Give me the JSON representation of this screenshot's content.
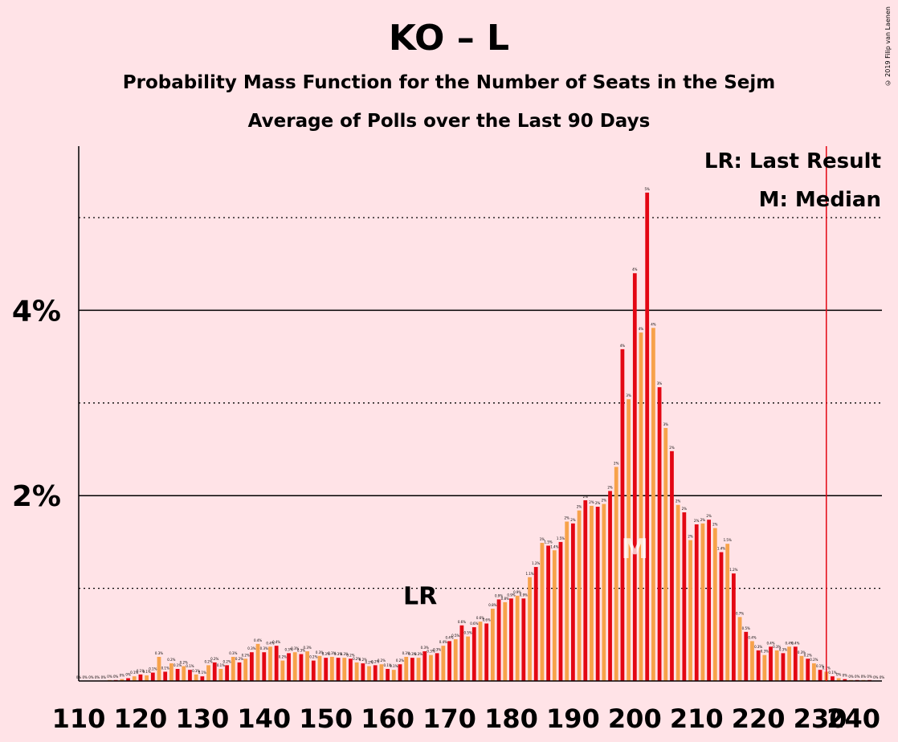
{
  "title": "KO – L",
  "subtitle": "Probability Mass Function for the Number of Seats in the Sejm",
  "subtitle2": "Average of Polls over the Last 90 Days",
  "copyright": "© 2019 Filip van Laenen",
  "legend": {
    "lr": "LR: Last Result",
    "m": "M: Median"
  },
  "markers": {
    "lr_label": "LR",
    "lr_x": 165,
    "m_label": "M",
    "m_x": 200,
    "majority_x": 231
  },
  "colors": {
    "background": "#ffe3e7",
    "red": "#e30613",
    "orange": "#f7a24a",
    "majority_line": "#e30613"
  },
  "chart_data": {
    "type": "bar",
    "xlabel": "",
    "ylabel": "",
    "x_ticks": [
      110,
      120,
      130,
      140,
      150,
      160,
      170,
      180,
      190,
      200,
      210,
      220,
      230,
      240
    ],
    "y_ticks": [
      {
        "value": 2,
        "label": "2%"
      },
      {
        "value": 4,
        "label": "4%"
      }
    ],
    "ylim": [
      0,
      5.75
    ],
    "xlim": [
      110,
      240
    ],
    "x": [
      110,
      111,
      112,
      113,
      114,
      115,
      116,
      117,
      118,
      119,
      120,
      121,
      122,
      123,
      124,
      125,
      126,
      127,
      128,
      129,
      130,
      131,
      132,
      133,
      134,
      135,
      136,
      137,
      138,
      139,
      140,
      141,
      142,
      143,
      144,
      145,
      146,
      147,
      148,
      149,
      150,
      151,
      152,
      153,
      154,
      155,
      156,
      157,
      158,
      159,
      160,
      161,
      162,
      163,
      164,
      165,
      166,
      167,
      168,
      169,
      170,
      171,
      172,
      173,
      174,
      175,
      176,
      177,
      178,
      179,
      180,
      181,
      182,
      183,
      184,
      185,
      186,
      187,
      188,
      189,
      190,
      191,
      192,
      193,
      194,
      195,
      196,
      197,
      198,
      199,
      200,
      201,
      202,
      203,
      204,
      205,
      206,
      207,
      208,
      209,
      210,
      211,
      212,
      213,
      214,
      215,
      216,
      217,
      218,
      219,
      220,
      221,
      222,
      223,
      224,
      225,
      226,
      227,
      228,
      229,
      230,
      231,
      232,
      233,
      234,
      235,
      236,
      237,
      238,
      239,
      240
    ],
    "values": [
      0,
      0,
      0,
      0,
      0,
      0.01,
      0.01,
      0.02,
      0.03,
      0.05,
      0.07,
      0.06,
      0.09,
      0.26,
      0.1,
      0.19,
      0.13,
      0.16,
      0.12,
      0.07,
      0.05,
      0.17,
      0.2,
      0.13,
      0.17,
      0.26,
      0.2,
      0.24,
      0.31,
      0.4,
      0.31,
      0.37,
      0.38,
      0.22,
      0.3,
      0.31,
      0.29,
      0.32,
      0.22,
      0.27,
      0.25,
      0.26,
      0.25,
      0.25,
      0.24,
      0.2,
      0.19,
      0.16,
      0.17,
      0.18,
      0.13,
      0.12,
      0.18,
      0.26,
      0.25,
      0.25,
      0.32,
      0.28,
      0.3,
      0.38,
      0.43,
      0.45,
      0.6,
      0.48,
      0.58,
      0.64,
      0.62,
      0.78,
      0.88,
      0.85,
      0.89,
      0.92,
      0.89,
      1.12,
      1.23,
      1.49,
      1.46,
      1.41,
      1.5,
      1.72,
      1.7,
      1.84,
      1.95,
      1.89,
      1.88,
      1.91,
      2.05,
      2.31,
      3.58,
      3.04,
      4.4,
      3.76,
      5.27,
      3.81,
      3.17,
      2.73,
      2.48,
      1.9,
      1.82,
      1.52,
      1.69,
      1.7,
      1.74,
      1.65,
      1.39,
      1.48,
      1.16,
      0.69,
      0.53,
      0.43,
      0.33,
      0.28,
      0.37,
      0.33,
      0.3,
      0.37,
      0.37,
      0.27,
      0.24,
      0.19,
      0.12,
      0.1,
      0.05,
      0.03,
      0.02,
      0.01,
      0.01,
      0.01,
      0.01,
      0,
      0
    ],
    "data_labels": [
      "0%",
      "0%",
      "0%",
      "0%",
      "0%",
      "0%",
      "0%",
      "0%",
      "0%",
      "0.1%",
      "0.1%",
      "0.1%",
      "0.1%",
      "0.3%",
      "0.1%",
      "0.2%",
      "0.1%",
      "0.2%",
      "0.1%",
      "0.1%",
      "0.1%",
      "0.2%",
      "0.2%",
      "0.1%",
      "0.2%",
      "0.3%",
      "0.2%",
      "0.2%",
      "0.3%",
      "0.4%",
      "0.3%",
      "0.4%",
      "0.4%",
      "0.2%",
      "0.3%",
      "0.3%",
      "0.3%",
      "0.3%",
      "0.2%",
      "0.3%",
      "0.3%",
      "0.3%",
      "0.3%",
      "0.3%",
      "0.2%",
      "0.2%",
      "0.2%",
      "0.2%",
      "0.2%",
      "0.2%",
      "0.1%",
      "0.1%",
      "0.2%",
      "0.3%",
      "0.3%",
      "0.3%",
      "0.3%",
      "0.3%",
      "0.3%",
      "0.4%",
      "0.4%",
      "0.5%",
      "0.6%",
      "0.5%",
      "0.6%",
      "0.6%",
      "0.6%",
      "0.8%",
      "0.9%",
      "0.8%",
      "0.9%",
      "0.9%",
      "0.9%",
      "1.1%",
      "1.2%",
      "1%",
      "1.5%",
      "1.4%",
      "1.5%",
      "2%",
      "2%",
      "2%",
      "2%",
      "2%",
      "2%",
      "2%",
      "2%",
      "2%",
      "4%",
      "3%",
      "4%",
      "4%",
      "5%",
      "4%",
      "3%",
      "3%",
      "2%",
      "2%",
      "2%",
      "2%",
      "2%",
      "2%",
      "2%",
      "2%",
      "1.4%",
      "1.5%",
      "1.2%",
      "0.7%",
      "0.5%",
      "0.4%",
      "0.3%",
      "0.3%",
      "0.4%",
      "0.3%",
      "0.3%",
      "0.4%",
      "0.4%",
      "0.3%",
      "0.2%",
      "0.2%",
      "0.1%",
      "0.1%",
      "0.1%",
      "0%",
      "0%",
      "0%",
      "0%",
      "0%",
      "0%",
      "0%",
      "0%"
    ]
  }
}
